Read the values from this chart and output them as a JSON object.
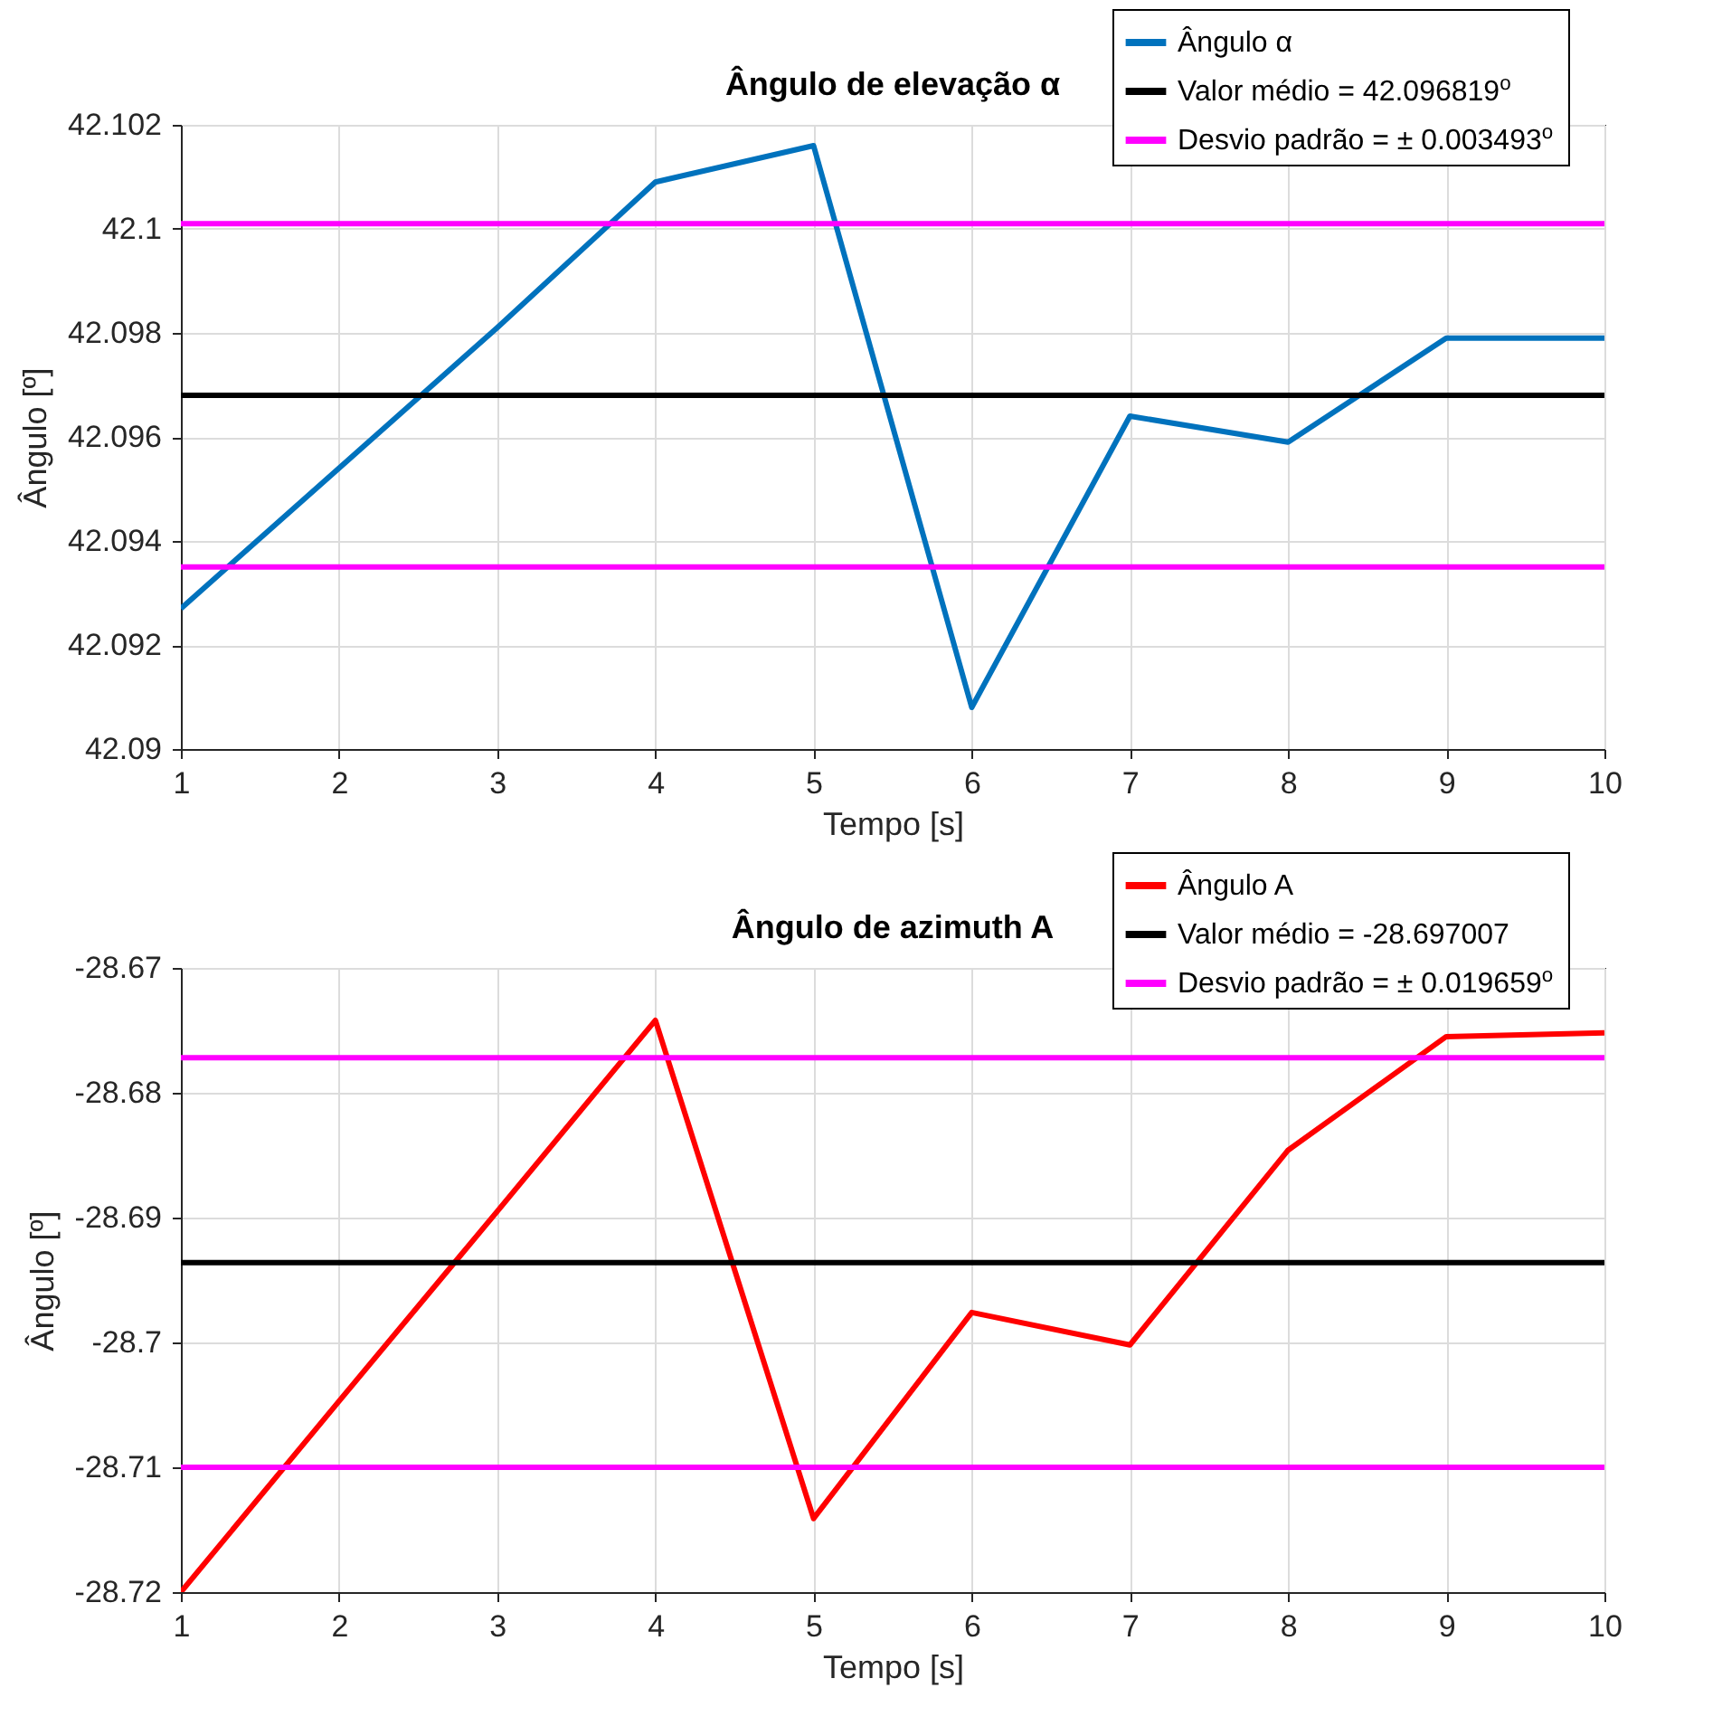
{
  "chart_data": [
    {
      "type": "line",
      "title": "Ângulo de elevação  α",
      "xlabel": "Tempo [s]",
      "ylabel": "Ângulo [º]",
      "x": [
        1,
        2,
        3,
        4,
        5,
        6,
        7,
        8,
        9,
        10
      ],
      "xlim": [
        1,
        10
      ],
      "xticks": [
        1,
        2,
        3,
        4,
        5,
        6,
        7,
        8,
        9,
        10
      ],
      "ylim": [
        42.09,
        42.102
      ],
      "yticks": [
        42.09,
        42.092,
        42.094,
        42.096,
        42.098,
        42.1,
        42.102
      ],
      "grid": true,
      "legend": "top right",
      "line_style": "solid",
      "marker": "none",
      "series": [
        {
          "name": "Ângulo α",
          "color": "#0072bd",
          "values": [
            42.0927,
            42.0954,
            42.0981,
            42.1009,
            42.1016,
            42.0908,
            42.0964,
            42.0959,
            42.0979,
            42.0979
          ]
        },
        {
          "name": "Valor médio = 42.096819$^{o}$",
          "color": "#000000",
          "values": [
            42.0968,
            42.0968,
            42.0968,
            42.0968,
            42.0968,
            42.0968,
            42.0968,
            42.0968,
            42.0968,
            42.0968
          ]
        },
        {
          "name": "Desvio padrão = ± 0.003493$^{o}$",
          "color": "#ff00ff",
          "values": [
            42.1001,
            42.1001,
            42.1001,
            42.1001,
            42.1001,
            42.1001,
            42.1001,
            42.1001,
            42.1001,
            42.1001
          ]
        },
        {
          "color": "#ff00ff",
          "values": [
            42.0935,
            42.0935,
            42.0935,
            42.0935,
            42.0935,
            42.0935,
            42.0935,
            42.0935,
            42.0935,
            42.0935
          ]
        }
      ]
    },
    {
      "type": "line",
      "title": "Ângulo de azimuth A",
      "xlabel": "Tempo [s]",
      "ylabel": "Ângulo [º]",
      "x": [
        1,
        2,
        3,
        4,
        5,
        6,
        7,
        8,
        9,
        10
      ],
      "xlim": [
        1,
        10
      ],
      "xticks": [
        1,
        2,
        3,
        4,
        5,
        6,
        7,
        8,
        9,
        10
      ],
      "ylim": [
        -28.72,
        -28.67
      ],
      "yticks": [
        -28.72,
        -28.71,
        -28.7,
        -28.69,
        -28.68,
        -28.67
      ],
      "grid": true,
      "legend": "top right",
      "line_style": "solid",
      "marker": "none",
      "series": [
        {
          "name": "Ângulo A",
          "color": "#ff0000",
          "values": [
            -28.72,
            -28.7047,
            -28.6895,
            -28.6742,
            -28.7141,
            -28.6976,
            -28.7002,
            -28.6846,
            -28.6755,
            -28.6752
          ]
        },
        {
          "name": "Valor médio = -28.697007",
          "color": "#000000",
          "values": [
            -28.6936,
            -28.6936,
            -28.6936,
            -28.6936,
            -28.6936,
            -28.6936,
            -28.6936,
            -28.6936,
            -28.6936,
            -28.6936
          ]
        },
        {
          "name": "Desvio padrão = ± 0.019659$^{o}$",
          "color": "#ff00ff",
          "values": [
            -28.6772,
            -28.6772,
            -28.6772,
            -28.6772,
            -28.6772,
            -28.6772,
            -28.6772,
            -28.6772,
            -28.6772,
            -28.6772
          ]
        },
        {
          "color": "#ff00ff",
          "values": [
            -28.71,
            -28.71,
            -28.71,
            -28.71,
            -28.71,
            -28.71,
            -28.71,
            -28.71,
            -28.71,
            -28.71
          ]
        }
      ]
    }
  ]
}
